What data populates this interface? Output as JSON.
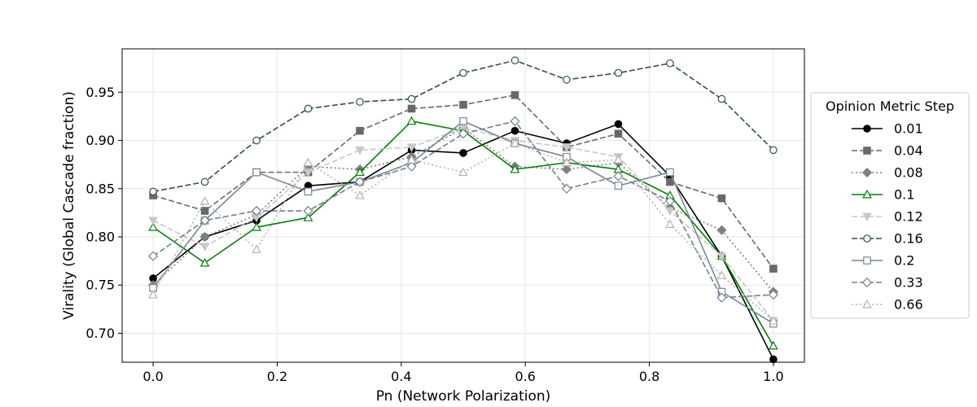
{
  "chart_data": {
    "type": "line",
    "title": "",
    "xlabel": "Pn (Network Polarization)",
    "ylabel": "Virality (Global Cascade fraction)",
    "xlim": [
      -0.05,
      1.05
    ],
    "ylim": [
      0.67,
      0.995
    ],
    "xticks": [
      0.0,
      0.2,
      0.4,
      0.6,
      0.8,
      1.0
    ],
    "xtick_labels": [
      "0.0",
      "0.2",
      "0.4",
      "0.6",
      "0.8",
      "1.0"
    ],
    "yticks": [
      0.7,
      0.75,
      0.8,
      0.85,
      0.9,
      0.95
    ],
    "ytick_labels": [
      "0.70",
      "0.75",
      "0.80",
      "0.85",
      "0.90",
      "0.95"
    ],
    "grid": true,
    "legend_title": "Opinion Metric Step",
    "legend_position": "right-outside",
    "x": [
      0.0,
      0.0833,
      0.1667,
      0.25,
      0.3333,
      0.4167,
      0.5,
      0.5833,
      0.6667,
      0.75,
      0.8333,
      0.9167,
      1.0
    ],
    "series": [
      {
        "name": "0.01",
        "color": "#000000",
        "dash": "solid",
        "marker": "circle",
        "fill": "#000000",
        "values": [
          0.757,
          0.8,
          0.817,
          0.853,
          0.857,
          0.89,
          0.887,
          0.91,
          0.897,
          0.917,
          0.863,
          0.78,
          0.673
        ]
      },
      {
        "name": "0.04",
        "color": "#696969",
        "dash": "dashed",
        "marker": "square",
        "fill": "#696969",
        "values": [
          0.843,
          0.827,
          0.867,
          0.867,
          0.91,
          0.933,
          0.937,
          0.947,
          0.893,
          0.907,
          0.857,
          0.84,
          0.767
        ]
      },
      {
        "name": "0.08",
        "color": "#808080",
        "dash": "dotted",
        "marker": "diamond",
        "fill": "#808080",
        "values": [
          0.75,
          0.8,
          0.823,
          0.873,
          0.87,
          0.883,
          0.913,
          0.873,
          0.87,
          0.877,
          0.83,
          0.807,
          0.743
        ]
      },
      {
        "name": "0.1",
        "color": "#008000",
        "dash": "solid",
        "marker": "triangle-up",
        "fill": "none",
        "values": [
          0.81,
          0.773,
          0.81,
          0.82,
          0.867,
          0.92,
          0.91,
          0.87,
          0.877,
          0.87,
          0.843,
          0.78,
          0.687
        ]
      },
      {
        "name": "0.12",
        "color": "#c8c8c8",
        "dash": "dashed",
        "marker": "triangle-down",
        "fill": "#c8c8c8",
        "values": [
          0.817,
          0.79,
          0.82,
          0.867,
          0.89,
          0.893,
          0.913,
          0.9,
          0.893,
          0.883,
          0.827,
          0.78,
          0.713
        ]
      },
      {
        "name": "0.16",
        "color": "#2f4f4f",
        "dash": "dashed",
        "marker": "circle",
        "fill": "none",
        "values": [
          0.847,
          0.857,
          0.9,
          0.933,
          0.94,
          0.943,
          0.97,
          0.983,
          0.963,
          0.97,
          0.98,
          0.943,
          0.89
        ]
      },
      {
        "name": "0.2",
        "color": "#778899",
        "dash": "solid",
        "marker": "square",
        "fill": "none",
        "values": [
          0.747,
          0.817,
          0.867,
          0.847,
          0.857,
          0.877,
          0.92,
          0.897,
          0.883,
          0.853,
          0.867,
          0.743,
          0.71
        ]
      },
      {
        "name": "0.33",
        "color": "#708090",
        "dash": "dashed",
        "marker": "diamond",
        "fill": "none",
        "values": [
          0.78,
          0.817,
          0.827,
          0.827,
          0.857,
          0.873,
          0.907,
          0.92,
          0.85,
          0.863,
          0.837,
          0.737,
          0.74
        ]
      },
      {
        "name": "0.66",
        "color": "#b4b4b4",
        "dash": "dotted",
        "marker": "triangle-up",
        "fill": "none",
        "values": [
          0.74,
          0.837,
          0.787,
          0.877,
          0.843,
          0.88,
          0.867,
          0.897,
          0.877,
          0.88,
          0.813,
          0.76,
          0.713
        ]
      }
    ]
  }
}
